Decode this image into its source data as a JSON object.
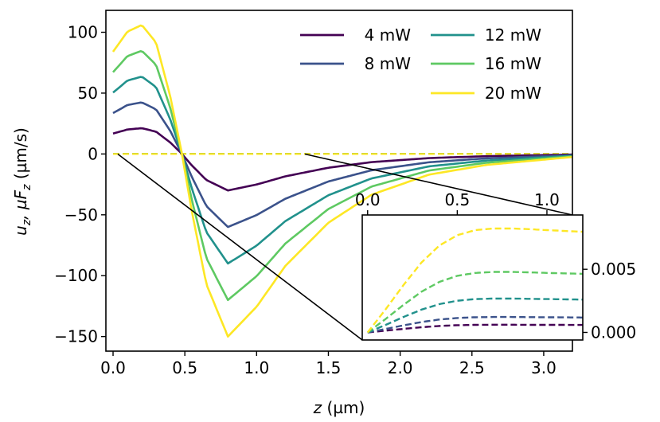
{
  "chart_data": [
    {
      "type": "line",
      "title": "",
      "xlabel_var": "z",
      "xlabel_unit": "(µm)",
      "ylabel_parts": [
        "u",
        "z",
        ",  µF",
        "z",
        " (µm/s)"
      ],
      "xlim": [
        -0.05,
        3.2
      ],
      "ylim": [
        -162,
        118
      ],
      "xticks": [
        0.0,
        0.5,
        1.0,
        1.5,
        2.0,
        2.5,
        3.0
      ],
      "xtick_labels": [
        "0.0",
        "0.5",
        "1.0",
        "1.5",
        "2.0",
        "2.5",
        "3.0"
      ],
      "yticks": [
        100,
        50,
        0,
        -50,
        -100,
        -150
      ],
      "ytick_labels": [
        "100",
        "50",
        "0",
        "−50",
        "−100",
        "−150"
      ],
      "legend_position": "top-right",
      "series": [
        {
          "name": "4 mW",
          "power": 4,
          "color": "#440154",
          "x": [
            0.0,
            0.1,
            0.2,
            0.3,
            0.4,
            0.48,
            0.55,
            0.65,
            0.8,
            1.0,
            1.2,
            1.5,
            1.8,
            2.2,
            2.6,
            3.2
          ],
          "y": [
            16.8,
            20.1,
            21.2,
            18.3,
            9.3,
            0.0,
            -9.6,
            -21.4,
            -30.0,
            -25.1,
            -18.4,
            -11.3,
            -6.7,
            -3.4,
            -1.8,
            -0.5
          ]
        },
        {
          "name": "8 mW",
          "power": 8,
          "color": "#3b528b",
          "x": [
            0.0,
            0.1,
            0.2,
            0.3,
            0.4,
            0.48,
            0.55,
            0.65,
            0.8,
            1.0,
            1.2,
            1.5,
            1.8,
            2.2,
            2.6,
            3.2
          ],
          "y": [
            33.6,
            40.2,
            42.4,
            36.6,
            18.6,
            0.0,
            -19.2,
            -42.8,
            -60.0,
            -50.2,
            -36.8,
            -22.6,
            -13.4,
            -6.8,
            -3.6,
            -1.0
          ]
        },
        {
          "name": "12 mW",
          "power": 12,
          "color": "#21918c",
          "x": [
            0.0,
            0.1,
            0.2,
            0.3,
            0.4,
            0.48,
            0.55,
            0.65,
            0.8,
            1.0,
            1.2,
            1.5,
            1.8,
            2.2,
            2.6,
            3.2
          ],
          "y": [
            50.4,
            60.3,
            63.6,
            54.9,
            27.9,
            0.0,
            -28.8,
            -64.2,
            -90.0,
            -75.3,
            -55.2,
            -33.9,
            -20.1,
            -10.2,
            -5.4,
            -1.5
          ]
        },
        {
          "name": "16 mW",
          "power": 16,
          "color": "#5ec962",
          "x": [
            0.0,
            0.1,
            0.2,
            0.3,
            0.4,
            0.48,
            0.55,
            0.65,
            0.8,
            1.0,
            1.2,
            1.5,
            1.8,
            2.2,
            2.6,
            3.2
          ],
          "y": [
            67.2,
            80.4,
            84.8,
            73.2,
            37.2,
            0.0,
            -38.4,
            -85.6,
            -120.0,
            -100.4,
            -73.6,
            -45.2,
            -26.8,
            -13.6,
            -7.2,
            -2.0
          ]
        },
        {
          "name": "20 mW",
          "power": 20,
          "color": "#fde725",
          "x": [
            0.0,
            0.1,
            0.2,
            0.3,
            0.4,
            0.48,
            0.55,
            0.65,
            0.8,
            1.0,
            1.2,
            1.5,
            1.8,
            2.2,
            2.6,
            3.2
          ],
          "y": [
            84.0,
            100.5,
            106.0,
            91.5,
            46.5,
            0.0,
            -48.0,
            -107.0,
            -150.0,
            -125.5,
            -92.0,
            -56.5,
            -33.5,
            -17.0,
            -9.0,
            -2.5
          ]
        }
      ],
      "dashed_series_x": [
        -0.05,
        3.2
      ],
      "dashed_series_y": [
        0,
        0
      ]
    },
    {
      "type": "line",
      "role": "inset",
      "title": "",
      "xlim": [
        -0.03,
        1.2
      ],
      "ylim": [
        -0.0006,
        0.0093
      ],
      "xticks": [
        0.0,
        0.5,
        1.0
      ],
      "xtick_labels": [
        "0.0",
        "0.5",
        "1.0"
      ],
      "xticks_position": "top",
      "yticks": [
        0.0,
        0.005
      ],
      "ytick_labels": [
        "0.000",
        "0.005"
      ],
      "yticks_position": "right",
      "series": [
        {
          "name": "4 mW",
          "color": "#440154",
          "x": [
            0.0,
            0.1,
            0.2,
            0.3,
            0.4,
            0.5,
            0.6,
            0.7,
            0.8,
            0.9,
            1.0,
            1.2
          ],
          "y": [
            0.0,
            0.00014,
            0.00028,
            0.00041,
            0.00051,
            0.00057,
            0.0006,
            0.00061,
            0.00061,
            0.0006,
            0.0006,
            0.00059
          ]
        },
        {
          "name": "8 mW",
          "color": "#3b528b",
          "x": [
            0.0,
            0.1,
            0.2,
            0.3,
            0.4,
            0.5,
            0.6,
            0.7,
            0.8,
            0.9,
            1.0,
            1.2
          ],
          "y": [
            0.0,
            0.00027,
            0.00056,
            0.00082,
            0.00102,
            0.00114,
            0.0012,
            0.00122,
            0.00122,
            0.00121,
            0.0012,
            0.00118
          ]
        },
        {
          "name": "12 mW",
          "color": "#21918c",
          "x": [
            0.0,
            0.1,
            0.2,
            0.3,
            0.4,
            0.5,
            0.6,
            0.7,
            0.8,
            0.9,
            1.0,
            1.2
          ],
          "y": [
            0.0,
            0.00059,
            0.00122,
            0.0018,
            0.00224,
            0.00251,
            0.00264,
            0.00268,
            0.00268,
            0.00266,
            0.00264,
            0.0026
          ]
        },
        {
          "name": "16 mW",
          "color": "#5ec962",
          "x": [
            0.0,
            0.1,
            0.2,
            0.3,
            0.4,
            0.5,
            0.6,
            0.7,
            0.8,
            0.9,
            1.0,
            1.2
          ],
          "y": [
            0.0,
            0.00106,
            0.00218,
            0.00322,
            0.004,
            0.00448,
            0.00471,
            0.00479,
            0.00479,
            0.00476,
            0.00471,
            0.00464
          ]
        },
        {
          "name": "20 mW",
          "color": "#fde725",
          "x": [
            0.0,
            0.1,
            0.2,
            0.3,
            0.4,
            0.5,
            0.6,
            0.7,
            0.8,
            0.9,
            1.0,
            1.2
          ],
          "y": [
            0.0,
            0.00182,
            0.00375,
            0.00553,
            0.00688,
            0.0077,
            0.0081,
            0.00823,
            0.00823,
            0.00818,
            0.0081,
            0.00797
          ]
        }
      ]
    }
  ]
}
